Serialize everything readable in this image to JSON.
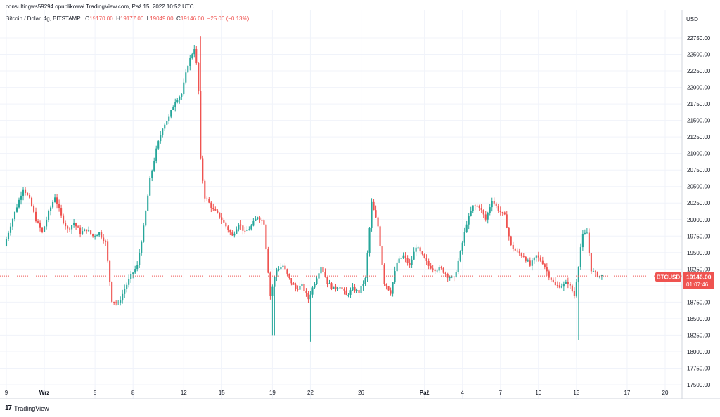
{
  "header": {
    "publisher": "consultingws59294 opublikował TradingView.com, Paź 15, 2022 10:52 UTC"
  },
  "legend": {
    "symbol": "Bitcoin / Dolar, 4g, BITSTAMP",
    "o_label": "O",
    "o_value": "19170.00",
    "h_label": "H",
    "h_value": "19177.00",
    "l_label": "L",
    "l_value": "19049.00",
    "c_label": "C",
    "c_value": "19146.00",
    "change": "−25.00 (−0.13%)"
  },
  "price_tag": {
    "symbol": "BTCUSD",
    "price": "19146.00",
    "countdown": "01:07:46",
    "color": "#ef5350"
  },
  "footer": {
    "brand": "TradingView",
    "logo": "tv-logo-icon"
  },
  "chart_data": {
    "type": "candlestick",
    "currency": "USD",
    "ylim": [
      17450,
      22850
    ],
    "yticks": [
      17500,
      17750,
      18000,
      18250,
      18500,
      18750,
      19000,
      19250,
      19500,
      19750,
      20000,
      20250,
      20500,
      20750,
      21000,
      21250,
      21500,
      21750,
      22000,
      22250,
      22500,
      22750
    ],
    "ytick_labels": [
      "17500.00",
      "17750.00",
      "18000.00",
      "18250.00",
      "18500.00",
      "18750.00",
      "19000.00",
      "19250.00",
      "19500.00",
      "19750.00",
      "20000.00",
      "20250.00",
      "20500.00",
      "20750.00",
      "21000.00",
      "21250.00",
      "21500.00",
      "21750.00",
      "22000.00",
      "22250.00",
      "22500.00",
      "22750.00"
    ],
    "x_start_day": -1.0,
    "x_end_day": 52.6,
    "xticks": [
      {
        "day": 0,
        "label": "9"
      },
      {
        "day": 3,
        "label": "Wrz"
      },
      {
        "day": 7,
        "label": "5"
      },
      {
        "day": 10,
        "label": "8"
      },
      {
        "day": 14,
        "label": "12"
      },
      {
        "day": 17,
        "label": "15"
      },
      {
        "day": 21,
        "label": "19"
      },
      {
        "day": 24,
        "label": "22"
      },
      {
        "day": 28,
        "label": "26"
      },
      {
        "day": 33,
        "label": "Paź"
      },
      {
        "day": 36,
        "label": "4"
      },
      {
        "day": 39,
        "label": "7"
      },
      {
        "day": 42,
        "label": "10"
      },
      {
        "day": 45,
        "label": "13"
      },
      {
        "day": 49,
        "label": "17"
      },
      {
        "day": 52,
        "label": "20"
      }
    ],
    "current_price": 19146,
    "up_color": "#26a69a",
    "down_color": "#ef5350",
    "grid": true,
    "candles_per_day": 6,
    "anchors": [
      [
        0,
        19600
      ],
      [
        0.5,
        19920
      ],
      [
        1,
        20200
      ],
      [
        1.5,
        20480
      ],
      [
        2,
        20300
      ],
      [
        2.5,
        20000
      ],
      [
        3,
        19800
      ],
      [
        3.5,
        20100
      ],
      [
        4,
        20350
      ],
      [
        4.5,
        20050
      ],
      [
        5,
        19850
      ],
      [
        5.5,
        19950
      ],
      [
        6,
        19800
      ],
      [
        6.5,
        19850
      ],
      [
        7,
        19750
      ],
      [
        7.5,
        19800
      ],
      [
        8,
        19650
      ],
      [
        8.5,
        18780
      ],
      [
        9,
        18720
      ],
      [
        9.5,
        18950
      ],
      [
        10,
        19150
      ],
      [
        10.5,
        19300
      ],
      [
        11,
        19880
      ],
      [
        11.5,
        20600
      ],
      [
        12,
        21050
      ],
      [
        12.5,
        21400
      ],
      [
        13,
        21550
      ],
      [
        13.5,
        21800
      ],
      [
        14,
        21900
      ],
      [
        14.5,
        22350
      ],
      [
        15,
        22600
      ],
      [
        15.3,
        22150
      ],
      [
        15.5,
        20900
      ],
      [
        15.8,
        20350
      ],
      [
        16,
        20300
      ],
      [
        16.5,
        20150
      ],
      [
        17,
        20050
      ],
      [
        17.5,
        19900
      ],
      [
        18,
        19750
      ],
      [
        18.5,
        19950
      ],
      [
        19,
        19800
      ],
      [
        19.5,
        19900
      ],
      [
        20,
        20050
      ],
      [
        20.5,
        19950
      ],
      [
        21,
        18850
      ],
      [
        21.5,
        19250
      ],
      [
        22,
        19300
      ],
      [
        22.5,
        19100
      ],
      [
        23,
        18950
      ],
      [
        23.5,
        19000
      ],
      [
        24,
        18800
      ],
      [
        24.5,
        19050
      ],
      [
        25,
        19300
      ],
      [
        25.5,
        19050
      ],
      [
        26,
        18950
      ],
      [
        26.5,
        19000
      ],
      [
        27,
        18850
      ],
      [
        27.5,
        18950
      ],
      [
        28,
        18900
      ],
      [
        28.5,
        19100
      ],
      [
        29,
        20250
      ],
      [
        29.5,
        19900
      ],
      [
        30,
        19050
      ],
      [
        30.5,
        18900
      ],
      [
        31,
        19350
      ],
      [
        31.5,
        19450
      ],
      [
        32,
        19300
      ],
      [
        32.5,
        19600
      ],
      [
        33,
        19450
      ],
      [
        33.5,
        19300
      ],
      [
        34,
        19250
      ],
      [
        34.5,
        19250
      ],
      [
        35,
        19150
      ],
      [
        35.5,
        19100
      ],
      [
        36,
        19500
      ],
      [
        36.5,
        19950
      ],
      [
        37,
        20200
      ],
      [
        37.5,
        20200
      ],
      [
        38,
        20000
      ],
      [
        38.5,
        20300
      ],
      [
        39,
        20150
      ],
      [
        39.5,
        20050
      ],
      [
        40,
        19600
      ],
      [
        40.5,
        19500
      ],
      [
        41,
        19450
      ],
      [
        41.5,
        19300
      ],
      [
        42,
        19450
      ],
      [
        42.5,
        19350
      ],
      [
        43,
        19150
      ],
      [
        43.5,
        19000
      ],
      [
        44,
        19000
      ],
      [
        44.5,
        19050
      ],
      [
        45,
        18850
      ],
      [
        45.3,
        19250
      ],
      [
        45.6,
        19750
      ],
      [
        46,
        19800
      ],
      [
        46.3,
        19250
      ],
      [
        46.6,
        19180
      ],
      [
        47,
        19146
      ]
    ],
    "extremes": [
      {
        "day": 15.3,
        "high": 22780
      },
      {
        "day": 24,
        "low": 18150
      },
      {
        "day": 45.1,
        "low": 18170
      },
      {
        "day": 21.1,
        "low": 18250
      }
    ]
  }
}
